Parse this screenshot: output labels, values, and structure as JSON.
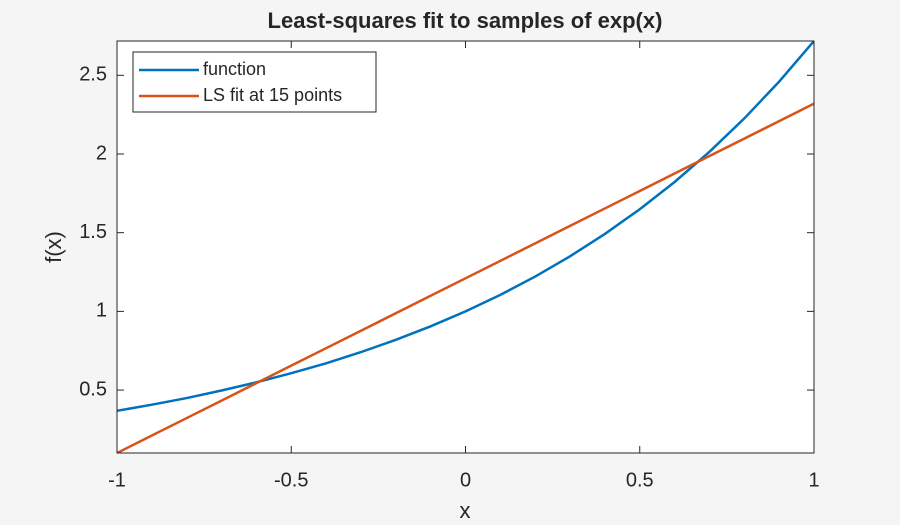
{
  "chart_data": {
    "type": "line",
    "title": "Least-squares fit to samples of exp(x)",
    "x_label": "x",
    "y_label": "f(x)",
    "x": [
      -1,
      -0.9,
      -0.8,
      -0.7,
      -0.6,
      -0.5,
      -0.4,
      -0.3,
      -0.2,
      -0.1,
      0,
      0.1,
      0.2,
      0.3,
      0.4,
      0.5,
      0.6,
      0.7,
      0.8,
      0.9,
      1
    ],
    "series": [
      {
        "name": "function",
        "color": "#0072bd",
        "values": [
          0.368,
          0.407,
          0.449,
          0.497,
          0.549,
          0.607,
          0.67,
          0.741,
          0.819,
          0.905,
          1,
          1.105,
          1.221,
          1.35,
          1.492,
          1.649,
          1.822,
          2.014,
          2.226,
          2.46,
          2.718
        ]
      },
      {
        "name": "LS fit at 15 points",
        "color": "#d95319",
        "values": [
          0.1,
          0.211,
          0.322,
          0.433,
          0.544,
          0.655,
          0.766,
          0.877,
          0.988,
          1.099,
          1.21,
          1.321,
          1.432,
          1.543,
          1.654,
          1.765,
          1.876,
          1.987,
          2.098,
          2.209,
          2.32
        ]
      }
    ],
    "xlim": [
      -1,
      1
    ],
    "ylim": [
      0.1,
      2.718
    ],
    "xticks": [
      -1,
      -0.5,
      0,
      0.5,
      1
    ],
    "yticks": [
      0.5,
      1,
      1.5,
      2,
      2.5
    ],
    "grid": false,
    "legend": "top-left"
  }
}
